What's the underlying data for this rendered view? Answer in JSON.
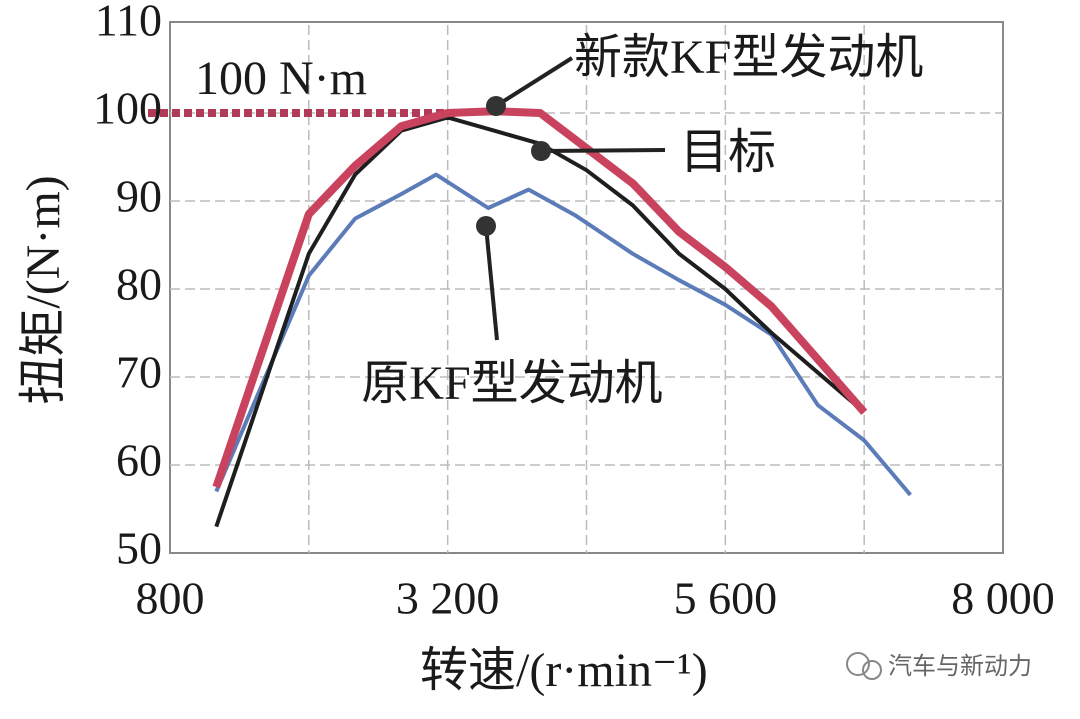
{
  "chart_data": {
    "type": "line",
    "x_label": "转速/(r·min⁻¹)",
    "y_label": "扭矩/(N·m)",
    "xlim": [
      800,
      8000
    ],
    "ylim": [
      50,
      110
    ],
    "xticks": [
      800,
      {
        "value": 3200,
        "label": "3 200"
      },
      {
        "value": 5600,
        "label": "5 600"
      },
      {
        "value": 8000,
        "label": "8 000"
      }
    ],
    "xgrid_minor": [
      2000,
      4400,
      6800
    ],
    "yticks": [
      50,
      60,
      70,
      80,
      90,
      100,
      110
    ],
    "grid": true,
    "reference_line": {
      "value": 100,
      "label": "100 N·m",
      "color": "#b23a58"
    },
    "series": [
      {
        "name": "新款KF型发动机",
        "color": "#c9435f",
        "x": [
          1200,
          2000,
          2400,
          2800,
          3200,
          3600,
          4000,
          4400,
          4800,
          5200,
          5600,
          6000,
          6400,
          6800
        ],
        "values": [
          57.5,
          88.5,
          94,
          98.5,
          100,
          100.2,
          100,
          96,
          92,
          86.5,
          82.5,
          78,
          72,
          66
        ]
      },
      {
        "name": "目标",
        "color": "#1e1e1e",
        "x": [
          1200,
          2000,
          2400,
          2800,
          3200,
          3600,
          4000,
          4400,
          4800,
          5200,
          5600,
          6000,
          6400,
          6800
        ],
        "values": [
          53,
          84,
          93,
          98,
          99.5,
          98,
          96.5,
          93.5,
          89.5,
          84,
          80,
          75,
          70.5,
          66
        ]
      },
      {
        "name": "原KF型发动机",
        "color": "#5b7bb9",
        "x": [
          1200,
          2000,
          2400,
          2800,
          3100,
          3550,
          3900,
          4300,
          4800,
          5200,
          5600,
          6000,
          6400,
          6800,
          7200
        ],
        "values": [
          57,
          81.5,
          88,
          90.8,
          93,
          89.2,
          91.3,
          88.4,
          84,
          81,
          78.2,
          74.8,
          66.8,
          62.8,
          56.6
        ]
      }
    ],
    "watermark": "汽车与新动力"
  }
}
